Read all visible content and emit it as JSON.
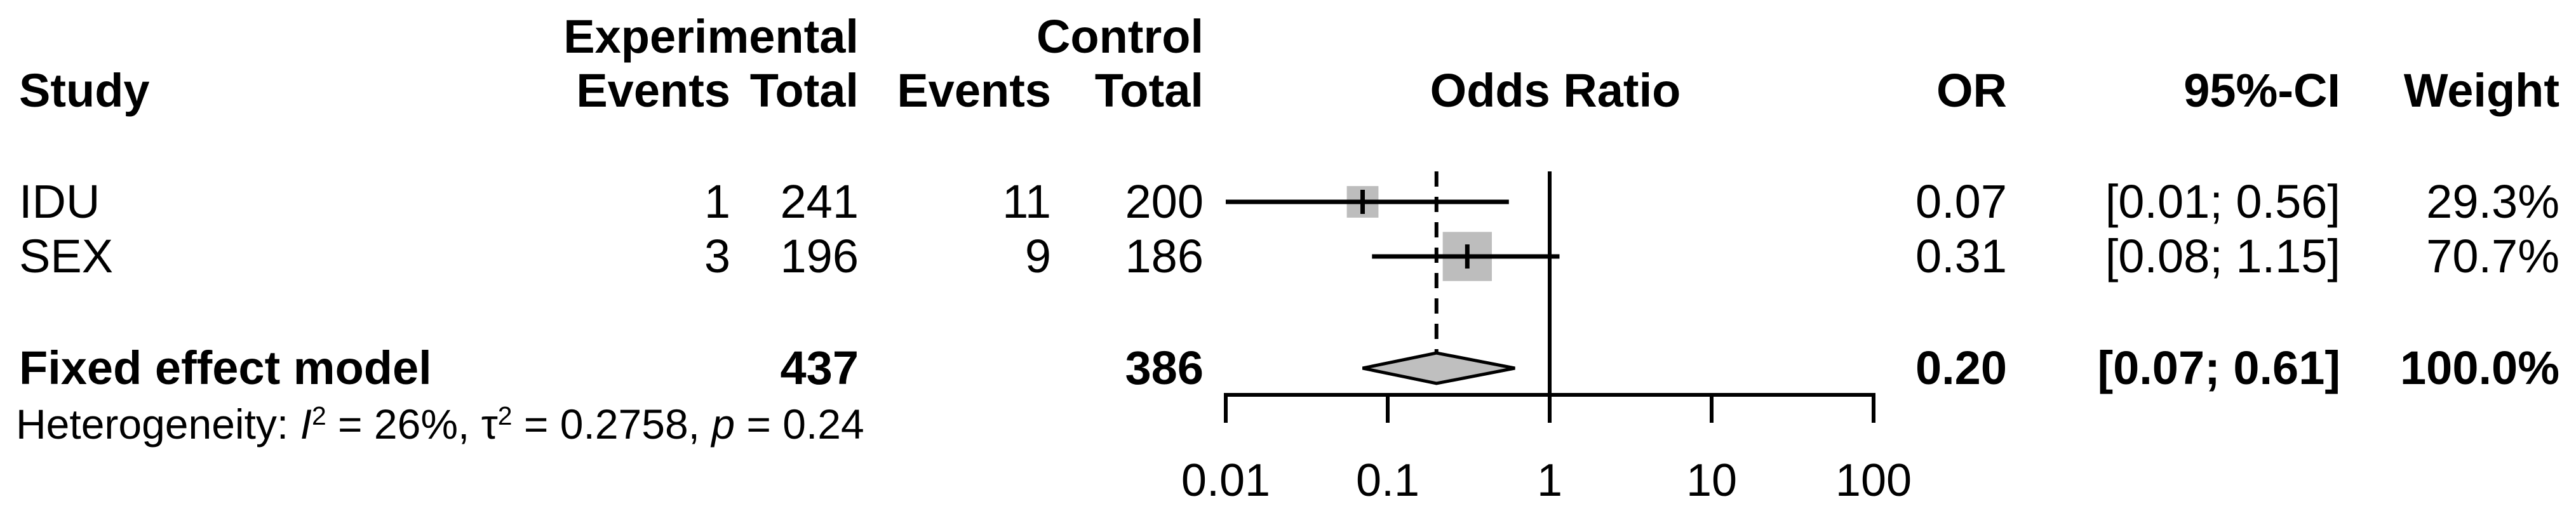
{
  "table": {
    "headers": {
      "study": "Study",
      "experimental_group": "Experimental",
      "control_group": "Control",
      "events": "Events",
      "total": "Total",
      "odds_ratio": "Odds Ratio",
      "or": "OR",
      "ci": "95%-CI",
      "weight": "Weight"
    },
    "studies": [
      {
        "name": "IDU",
        "exp_events": "1",
        "exp_total": "241",
        "ctrl_events": "11",
        "ctrl_total": "200",
        "or": "0.07",
        "ci": "[0.01; 0.56]",
        "weight": "29.3%"
      },
      {
        "name": "SEX",
        "exp_events": "3",
        "exp_total": "196",
        "ctrl_events": "9",
        "ctrl_total": "186",
        "or": "0.31",
        "ci": "[0.08; 1.15]",
        "weight": "70.7%"
      }
    ],
    "summary": {
      "label": "Fixed effect model",
      "exp_total": "437",
      "ctrl_total": "386",
      "or": "0.20",
      "ci": "[0.07; 0.61]",
      "weight": "100.0%"
    },
    "heterogeneity": {
      "prefix": "Heterogeneity: ",
      "i_label": "I",
      "sup": "2",
      "i_value": " = 26%, ",
      "tau_label": "τ",
      "tau_value": " = 0.2758, ",
      "p_label": "p",
      "p_value": " = 0.24"
    }
  },
  "chart_data": {
    "type": "forest",
    "effect_measure": "OR",
    "x_scale": "log10",
    "axis_ticks": [
      0.01,
      0.1,
      1,
      10,
      100
    ],
    "axis_tick_labels": [
      "0.01",
      "0.1",
      "1",
      "10",
      "100"
    ],
    "axis_range": [
      0.01,
      100
    ],
    "null_value": 1,
    "studies": [
      {
        "name": "IDU",
        "exp_events": 1,
        "exp_total": 241,
        "ctrl_events": 11,
        "ctrl_total": 200,
        "or": 0.07,
        "ci_low": 0.01,
        "ci_high": 0.56,
        "weight_pct": 29.3
      },
      {
        "name": "SEX",
        "exp_events": 3,
        "exp_total": 196,
        "ctrl_events": 9,
        "ctrl_total": 186,
        "or": 0.31,
        "ci_low": 0.08,
        "ci_high": 1.15,
        "weight_pct": 70.7
      }
    ],
    "summary": {
      "model": "Fixed effect model",
      "exp_total": 437,
      "ctrl_total": 386,
      "or": 0.2,
      "ci_low": 0.07,
      "ci_high": 0.61,
      "weight_pct": 100.0,
      "pooled_line": 0.2
    },
    "heterogeneity": {
      "I2_pct": 26,
      "tau2": 0.2758,
      "p": 0.24
    },
    "colors": {
      "square": "#bdbdbd",
      "diamond": "#bfbfbf",
      "line": "#000000",
      "text": "#000000"
    }
  }
}
